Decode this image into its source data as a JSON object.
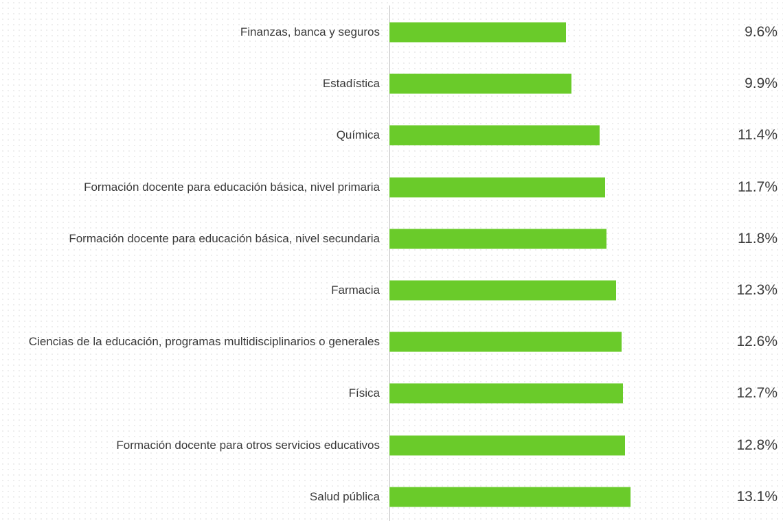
{
  "chart_data": {
    "type": "bar",
    "orientation": "horizontal",
    "color": "#6acb2a",
    "categories": [
      "Finanzas, banca y seguros",
      "Estadística",
      "Química",
      "Formación docente para educación básica, nivel primaria",
      "Formación docente para educación básica, nivel secundaria",
      "Farmacia",
      "Ciencias de la educación, programas multidisciplinarios o generales",
      "Física",
      "Formación docente para otros servicios educativos",
      "Salud pública"
    ],
    "values": [
      9.6,
      9.9,
      11.4,
      11.7,
      11.8,
      12.3,
      12.6,
      12.7,
      12.8,
      13.1
    ],
    "value_labels": [
      "9.6%",
      "9.9%",
      "11.4%",
      "11.7%",
      "11.8%",
      "12.3%",
      "12.6%",
      "12.7%",
      "12.8%",
      "13.1%"
    ]
  }
}
